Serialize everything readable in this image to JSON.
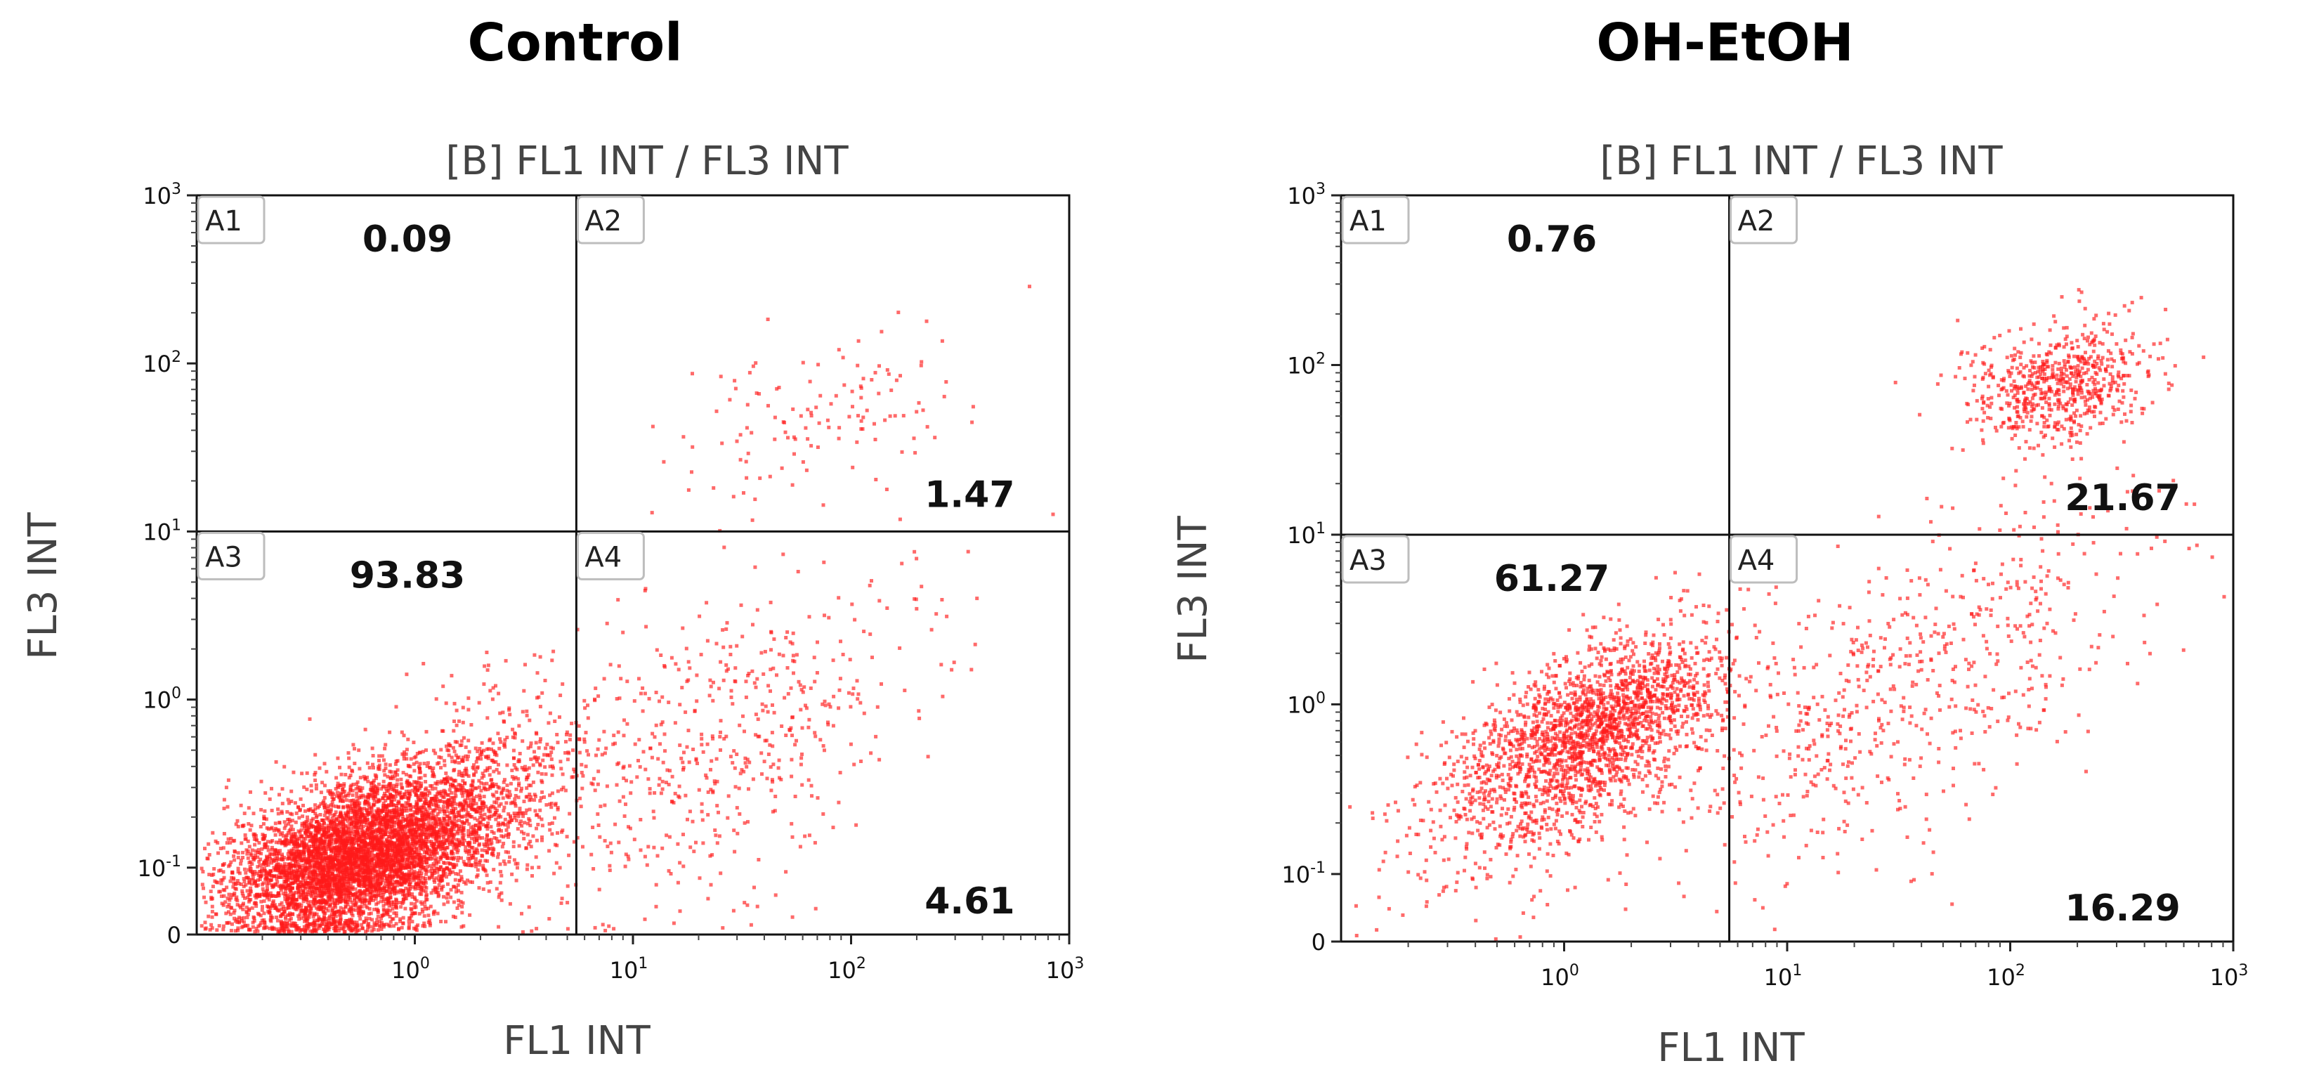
{
  "colors": {
    "dot": "#ff1a1a",
    "frame": "#111111",
    "axis_text": "#444444"
  },
  "chart_data": [
    {
      "type": "scatter",
      "panel_title": "Control",
      "title": "[B] FL1 INT / FL3 INT",
      "xlabel": "FL1 INT",
      "ylabel": "FL3 INT",
      "xscale": "log",
      "yscale": "log",
      "xlim": [
        0.1,
        1000
      ],
      "ylim": [
        0.04,
        1000
      ],
      "xticks": [
        {
          "value": 1,
          "base": "10",
          "exp": "0"
        },
        {
          "value": 10,
          "base": "10",
          "exp": "1"
        },
        {
          "value": 100,
          "base": "10",
          "exp": "2"
        },
        {
          "value": 1000,
          "base": "10",
          "exp": "3"
        }
      ],
      "yticks": [
        {
          "value": 0.04,
          "base": "0",
          "exp": ""
        },
        {
          "value": 0.1,
          "base": "10",
          "exp": "-1"
        },
        {
          "value": 1,
          "base": "10",
          "exp": "0"
        },
        {
          "value": 10,
          "base": "10",
          "exp": "1"
        },
        {
          "value": 100,
          "base": "10",
          "exp": "2"
        },
        {
          "value": 1000,
          "base": "10",
          "exp": "3"
        }
      ],
      "gate": {
        "x": 5.5,
        "y": 10
      },
      "quadrants": [
        {
          "name": "A1",
          "value": "0.09"
        },
        {
          "name": "A2",
          "value": "1.47"
        },
        {
          "name": "A3",
          "value": "93.83"
        },
        {
          "name": "A4",
          "value": "4.61"
        }
      ],
      "clusters": [
        {
          "n": 5200,
          "cx": 0.55,
          "cy": 0.12,
          "sx": 0.3,
          "sy": 0.24,
          "corr": 0.4
        },
        {
          "n": 900,
          "cx": 1.6,
          "cy": 0.25,
          "sx": 0.35,
          "sy": 0.35,
          "corr": 0.5
        },
        {
          "n": 520,
          "cx": 25,
          "cy": 0.5,
          "sx": 0.45,
          "sy": 0.55,
          "corr": 0.6
        },
        {
          "n": 130,
          "cx": 70,
          "cy": 50,
          "sx": 0.35,
          "sy": 0.3,
          "corr": 0.5
        }
      ]
    },
    {
      "type": "scatter",
      "panel_title": "OH-EtOH",
      "title": "[B] FL1 INT / FL3 INT",
      "xlabel": "FL1 INT",
      "ylabel": "FL3 INT",
      "xscale": "log",
      "yscale": "log",
      "xlim": [
        0.1,
        1000
      ],
      "ylim": [
        0.04,
        1000
      ],
      "xticks": [
        {
          "value": 1,
          "base": "10",
          "exp": "0"
        },
        {
          "value": 10,
          "base": "10",
          "exp": "1"
        },
        {
          "value": 100,
          "base": "10",
          "exp": "2"
        },
        {
          "value": 1000,
          "base": "10",
          "exp": "3"
        }
      ],
      "yticks": [
        {
          "value": 0.04,
          "base": "0",
          "exp": ""
        },
        {
          "value": 0.1,
          "base": "10",
          "exp": "-1"
        },
        {
          "value": 1,
          "base": "10",
          "exp": "0"
        },
        {
          "value": 10,
          "base": "10",
          "exp": "1"
        },
        {
          "value": 100,
          "base": "10",
          "exp": "2"
        },
        {
          "value": 1000,
          "base": "10",
          "exp": "3"
        }
      ],
      "gate": {
        "x": 5.5,
        "y": 10
      },
      "quadrants": [
        {
          "name": "A1",
          "value": "0.76"
        },
        {
          "name": "A2",
          "value": "21.67"
        },
        {
          "name": "A3",
          "value": "61.27"
        },
        {
          "name": "A4",
          "value": "16.29"
        }
      ],
      "clusters": [
        {
          "n": 1700,
          "cx": 1.4,
          "cy": 0.75,
          "sx": 0.28,
          "sy": 0.28,
          "corr": 0.55
        },
        {
          "n": 500,
          "cx": 0.7,
          "cy": 0.35,
          "sx": 0.35,
          "sy": 0.35,
          "corr": 0.5
        },
        {
          "n": 650,
          "cx": 170,
          "cy": 80,
          "sx": 0.2,
          "sy": 0.17,
          "corr": 0.2
        },
        {
          "n": 420,
          "cx": 60,
          "cy": 2,
          "sx": 0.45,
          "sy": 0.55,
          "corr": 0.5
        },
        {
          "n": 260,
          "cx": 12,
          "cy": 0.6,
          "sx": 0.4,
          "sy": 0.4,
          "corr": 0.3
        }
      ]
    }
  ]
}
